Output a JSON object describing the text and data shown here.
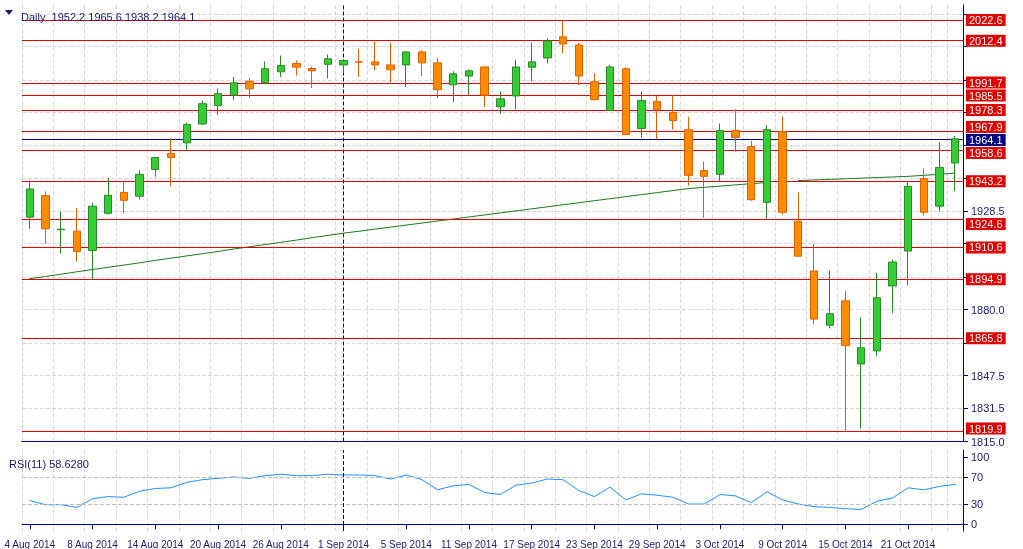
{
  "chart_data": [
    {
      "type": "candlestick",
      "title": "Daily  1952.2 1965.6 1938.2 1964.1",
      "categories": [
        "4 Aug 2014",
        null,
        null,
        null,
        "8 Aug 2014",
        null,
        null,
        null,
        "14 Aug 2014",
        null,
        null,
        null,
        "20 Aug 2014",
        null,
        null,
        null,
        "26 Aug 2014",
        null,
        null,
        null,
        "1 Sep 2014",
        null,
        null,
        null,
        "5 Sep 2014",
        null,
        null,
        null,
        "11 Sep 2014",
        null,
        null,
        null,
        "17 Sep 2014",
        null,
        null,
        null,
        "23 Sep 2014",
        null,
        null,
        null,
        "29 Sep 2014",
        null,
        null,
        null,
        "3 Oct 2014",
        null,
        null,
        null,
        "9 Oct 2014",
        null,
        null,
        null,
        "15 Oct 2014",
        null,
        null,
        null,
        "21 Oct 2014",
        null,
        null,
        null
      ],
      "ohlc": [
        [
          1925.5,
          1943.5,
          1919.8,
          1939.4
        ],
        [
          1936.1,
          1938.2,
          1912.4,
          1919.8
        ],
        [
          1919.3,
          1928.3,
          1907.5,
          1919.6
        ],
        [
          1918.6,
          1930.1,
          1903.7,
          1908.6
        ],
        [
          1909.1,
          1932.5,
          1894.7,
          1930.9
        ],
        [
          1927.4,
          1944.8,
          1926.8,
          1936.3
        ],
        [
          1937.7,
          1943.1,
          1927.4,
          1933.8
        ],
        [
          1935.8,
          1948.5,
          1934.2,
          1946.6
        ],
        [
          1949.0,
          1955.2,
          1945.4,
          1954.9
        ],
        [
          1956.9,
          1964.4,
          1940.7,
          1954.9
        ],
        [
          1962.1,
          1972.1,
          1958.7,
          1971.1
        ],
        [
          1971.4,
          1983.0,
          1970.9,
          1981.4
        ],
        [
          1980.4,
          1988.9,
          1975.8,
          1986.3
        ],
        [
          1985.6,
          1994.6,
          1983.2,
          1991.7
        ],
        [
          1992.4,
          1994.1,
          1984.2,
          1988.7
        ],
        [
          1991.7,
          2002.2,
          1991.5,
          1998.6
        ],
        [
          1997.1,
          2005.1,
          1994.5,
          2000.2
        ],
        [
          2001.2,
          2002.7,
          1995.3,
          1999.4
        ],
        [
          1998.7,
          1999.7,
          1989.1,
          1997.6
        ],
        [
          2000.8,
          2005.6,
          1993.8,
          2003.5
        ],
        [
          2000.5,
          2003.0,
          1996.6,
          2002.7
        ],
        [
          2002.0,
          2008.4,
          1994.5,
          2001.9
        ],
        [
          2002.0,
          2012.1,
          1997.8,
          2000.5
        ],
        [
          2000.5,
          2011.5,
          1992.0,
          1998.1
        ],
        [
          2000.5,
          2007.2,
          1989.6,
          2006.9
        ],
        [
          2006.9,
          2007.6,
          1995.0,
          2001.5
        ],
        [
          2001.5,
          2004.1,
          1984.2,
          1988.3
        ],
        [
          1990.7,
          1997.3,
          1982.2,
          1996.1
        ],
        [
          1995.0,
          1998.2,
          1985.5,
          1997.6
        ],
        [
          1999.5,
          1999.7,
          1979.8,
          1985.6
        ],
        [
          1979.9,
          1987.4,
          1976.3,
          1983.8
        ],
        [
          1985.2,
          2003.1,
          1978.6,
          1999.5
        ],
        [
          1999.4,
          2011.5,
          1992.5,
          2002.0
        ],
        [
          2003.9,
          2013.6,
          2001.3,
          2012.3
        ],
        [
          2014.3,
          2022.4,
          2006.2,
          2010.8
        ],
        [
          2010.3,
          2011.3,
          1990.6,
          1995.0
        ],
        [
          1992.2,
          1996.3,
          1982.9,
          1983.4
        ],
        [
          1978.0,
          2000.5,
          1977.8,
          1999.5
        ],
        [
          1998.6,
          1999.4,
          1966.0,
          1966.2
        ],
        [
          1969.1,
          1987.4,
          1964.6,
          1982.9
        ],
        [
          1982.4,
          1985.2,
          1963.6,
          1978.6
        ],
        [
          1977.0,
          1985.8,
          1968.8,
          1973.1
        ],
        [
          1968.6,
          1974.9,
          1941.0,
          1946.1
        ],
        [
          1948.5,
          1952.9,
          1925.2,
          1945.6
        ],
        [
          1946.6,
          1971.7,
          1942.7,
          1968.2
        ],
        [
          1968.2,
          1978.6,
          1957.7,
          1964.7
        ],
        [
          1960.3,
          1963.2,
          1933.5,
          1934.1
        ],
        [
          1932.8,
          1970.8,
          1924.7,
          1968.6
        ],
        [
          1967.7,
          1975.0,
          1926.8,
          1927.9
        ],
        [
          1923.5,
          1937.7,
          1906.1,
          1906.3
        ],
        [
          1899.0,
          1912.4,
          1872.7,
          1875.3
        ],
        [
          1872.3,
          1899.2,
          1870.7,
          1877.9
        ],
        [
          1884.3,
          1889.3,
          1819.9,
          1862.2
        ],
        [
          1853.2,
          1876.1,
          1821.4,
          1861.2
        ],
        [
          1859.6,
          1898.2,
          1857.1,
          1885.8
        ],
        [
          1891.6,
          1904.6,
          1878.2,
          1903.4
        ],
        [
          1908.8,
          1943.0,
          1892.0,
          1940.7
        ],
        [
          1944.6,
          1949.5,
          1926.3,
          1927.9
        ],
        [
          1930.9,
          1962.3,
          1928.3,
          1950.0
        ],
        [
          1952.2,
          1965.6,
          1938.2,
          1964.1
        ]
      ],
      "series": [
        {
          "type": "line",
          "color": "#1a7a1a",
          "values": [
            1895.2,
            1896.3,
            1897.4,
            1898.6,
            1899.7,
            1900.8,
            1901.9,
            1903.0,
            1904.2,
            1905.3,
            1906.4,
            1907.5,
            1908.6,
            1909.8,
            1910.9,
            1912.0,
            1913.1,
            1914.2,
            1915.4,
            1916.5,
            1917.6,
            1918.6,
            1919.6,
            1920.6,
            1921.6,
            1922.6,
            1923.6,
            1924.6,
            1925.6,
            1926.6,
            1927.6,
            1928.6,
            1929.6,
            1930.6,
            1931.6,
            1932.6,
            1933.6,
            1934.6,
            1935.6,
            1936.6,
            1937.6,
            1938.6,
            1939.6,
            1940.2,
            1940.8,
            1941.4,
            1942.0,
            1942.6,
            null,
            1943.5,
            1943.8,
            1944.1,
            1944.4,
            1944.7,
            1945.0,
            1945.3,
            1945.6,
            1946.1,
            1946.6,
            1947.2
          ]
        }
      ],
      "ylim": [
        1815,
        2030
      ],
      "yticks": [
        {
          "value": 1815,
          "label": "1815.0"
        },
        {
          "value": 1831.5,
          "label": "1831.5"
        },
        {
          "value": 1847.5,
          "label": "1847.5"
        },
        {
          "value": 1863.5,
          "label": null
        },
        {
          "value": 1880,
          "label": "1880.0"
        },
        {
          "value": 1896,
          "label": null
        },
        {
          "value": 1912.5,
          "label": null
        },
        {
          "value": 1928.5,
          "label": "1928.5"
        },
        {
          "value": 1944.5,
          "label": null
        },
        {
          "value": 1961,
          "label": null
        },
        {
          "value": 1977,
          "label": null
        },
        {
          "value": 1993,
          "label": null
        },
        {
          "value": 2009.5,
          "label": null
        },
        {
          "value": 2025.5,
          "label": null
        }
      ],
      "ref_lines": [
        {
          "axis": "y",
          "value": 2022.6,
          "label": "2022.6",
          "color": "#e00000"
        },
        {
          "axis": "y",
          "value": 2012.4,
          "label": "2012.4",
          "color": "#e00000"
        },
        {
          "axis": "y",
          "value": 1991.7,
          "label": "1991.7",
          "color": "#e00000"
        },
        {
          "axis": "y",
          "value": 1985.5,
          "label": "1985.5",
          "color": "#e00000"
        },
        {
          "axis": "y",
          "value": 1978.3,
          "label": "1978.3",
          "color": "#e00000"
        },
        {
          "axis": "y",
          "value": 1967.9,
          "label": "1967.9",
          "color": "#e00000"
        },
        {
          "axis": "y",
          "value": 1964.1,
          "label": "1964.1",
          "color": "#000080"
        },
        {
          "axis": "y",
          "value": 1958.6,
          "label": "1958.6",
          "color": "#e00000"
        },
        {
          "axis": "y",
          "value": 1943.2,
          "label": "1943.2",
          "color": "#e00000"
        },
        {
          "axis": "y",
          "value": 1924.6,
          "label": "1924.6",
          "color": "#e00000"
        },
        {
          "axis": "y",
          "value": 1910.6,
          "label": "1910.6",
          "color": "#e00000"
        },
        {
          "axis": "y",
          "value": 1894.9,
          "label": "1894.9",
          "color": "#e00000"
        },
        {
          "axis": "y",
          "value": 1865.8,
          "label": "1865.8",
          "color": "#e00000"
        },
        {
          "axis": "y",
          "value": 1819.9,
          "label": "1819.9",
          "color": "#e00000"
        },
        {
          "axis": "x",
          "value": "1 Sep 2014",
          "color": "#000080",
          "line_style": "dashed"
        }
      ],
      "grid": true,
      "tick_labels": "y"
    },
    {
      "type": "line",
      "title": "RSI(11) 58.6280",
      "categories": [
        "4 Aug 2014",
        null,
        null,
        null,
        "8 Aug 2014",
        null,
        null,
        null,
        "14 Aug 2014",
        null,
        null,
        null,
        "20 Aug 2014",
        null,
        null,
        null,
        "26 Aug 2014",
        null,
        null,
        null,
        "1 Sep 2014",
        null,
        null,
        null,
        "5 Sep 2014",
        null,
        null,
        null,
        "11 Sep 2014",
        null,
        null,
        null,
        "17 Sep 2014",
        null,
        null,
        null,
        "23 Sep 2014",
        null,
        null,
        null,
        "29 Sep 2014",
        null,
        null,
        null,
        "3 Oct 2014",
        null,
        null,
        null,
        "9 Oct 2014",
        null,
        null,
        null,
        "15 Oct 2014",
        null,
        null,
        null,
        "21 Oct 2014",
        null,
        null,
        null
      ],
      "values": [
        35,
        29,
        29,
        25,
        38,
        41,
        40,
        49,
        53,
        54,
        62,
        66,
        68,
        70,
        68,
        72,
        74,
        72,
        72,
        74,
        73,
        73,
        72,
        67,
        73,
        66,
        51,
        57,
        59,
        47,
        44,
        58,
        61,
        67,
        66,
        50,
        41,
        55,
        36,
        45,
        43,
        40,
        30,
        30,
        44,
        42,
        32,
        48,
        36,
        30,
        26,
        25,
        23,
        22,
        34,
        39,
        54,
        51,
        56,
        59
      ],
      "color": "#1e90ff",
      "ylim": [
        -10,
        110
      ],
      "yticks": [
        0,
        30,
        70,
        100
      ],
      "ref_lines": [
        {
          "axis": "y",
          "value": 30,
          "color": "#c0c0c0",
          "line_style": "dashed"
        },
        {
          "axis": "y",
          "value": 70,
          "color": "#c0c0c0",
          "line_style": "dashed"
        },
        {
          "axis": "x",
          "value": "1 Sep 2014",
          "color": "#000080",
          "line_style": "dashed"
        }
      ],
      "grid": "x"
    }
  ]
}
